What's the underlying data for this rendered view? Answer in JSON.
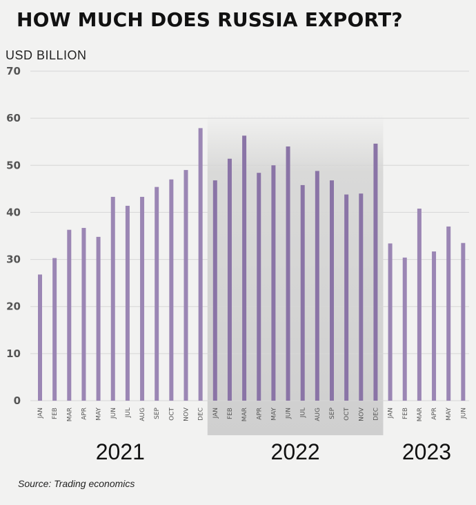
{
  "title": "HOW MUCH DOES RUSSIA EXPORT?",
  "source": "Source: Trading economics",
  "colors": {
    "bar": "#9b86b4",
    "bar_highlight": "#8a74a6",
    "highlight_band": "#cfcfcf"
  },
  "chart_data": {
    "type": "bar",
    "title": "HOW MUCH DOES RUSSIA EXPORT?",
    "ylabel": "USD BILLION",
    "xlabel": "",
    "ylim": [
      0,
      70
    ],
    "yticks": [
      0,
      10,
      20,
      30,
      40,
      50,
      60,
      70
    ],
    "grid": true,
    "highlighted_year": "2022",
    "years": [
      {
        "label": "2021",
        "months": [
          "JAN",
          "FEB",
          "MAR",
          "APR",
          "MAY",
          "JUN",
          "JUL",
          "AUG",
          "SEP",
          "OCT",
          "NOV",
          "DEC"
        ],
        "values": [
          26.8,
          30.3,
          36.3,
          36.7,
          34.8,
          43.3,
          41.4,
          43.3,
          45.4,
          47.0,
          49.0,
          57.9
        ]
      },
      {
        "label": "2022",
        "months": [
          "JAN",
          "FEB",
          "MAR",
          "APR",
          "MAY",
          "JUN",
          "JUL",
          "AUG",
          "SEP",
          "OCT",
          "NOV",
          "DEC"
        ],
        "values": [
          46.8,
          51.4,
          56.3,
          48.4,
          50.0,
          54.0,
          45.8,
          48.8,
          46.8,
          43.8,
          44.0,
          54.6
        ]
      },
      {
        "label": "2023",
        "months": [
          "JAN",
          "FEB",
          "MAR",
          "APR",
          "MAY",
          "JUN"
        ],
        "values": [
          33.4,
          30.4,
          40.8,
          31.7,
          37.0,
          33.5
        ]
      }
    ]
  }
}
